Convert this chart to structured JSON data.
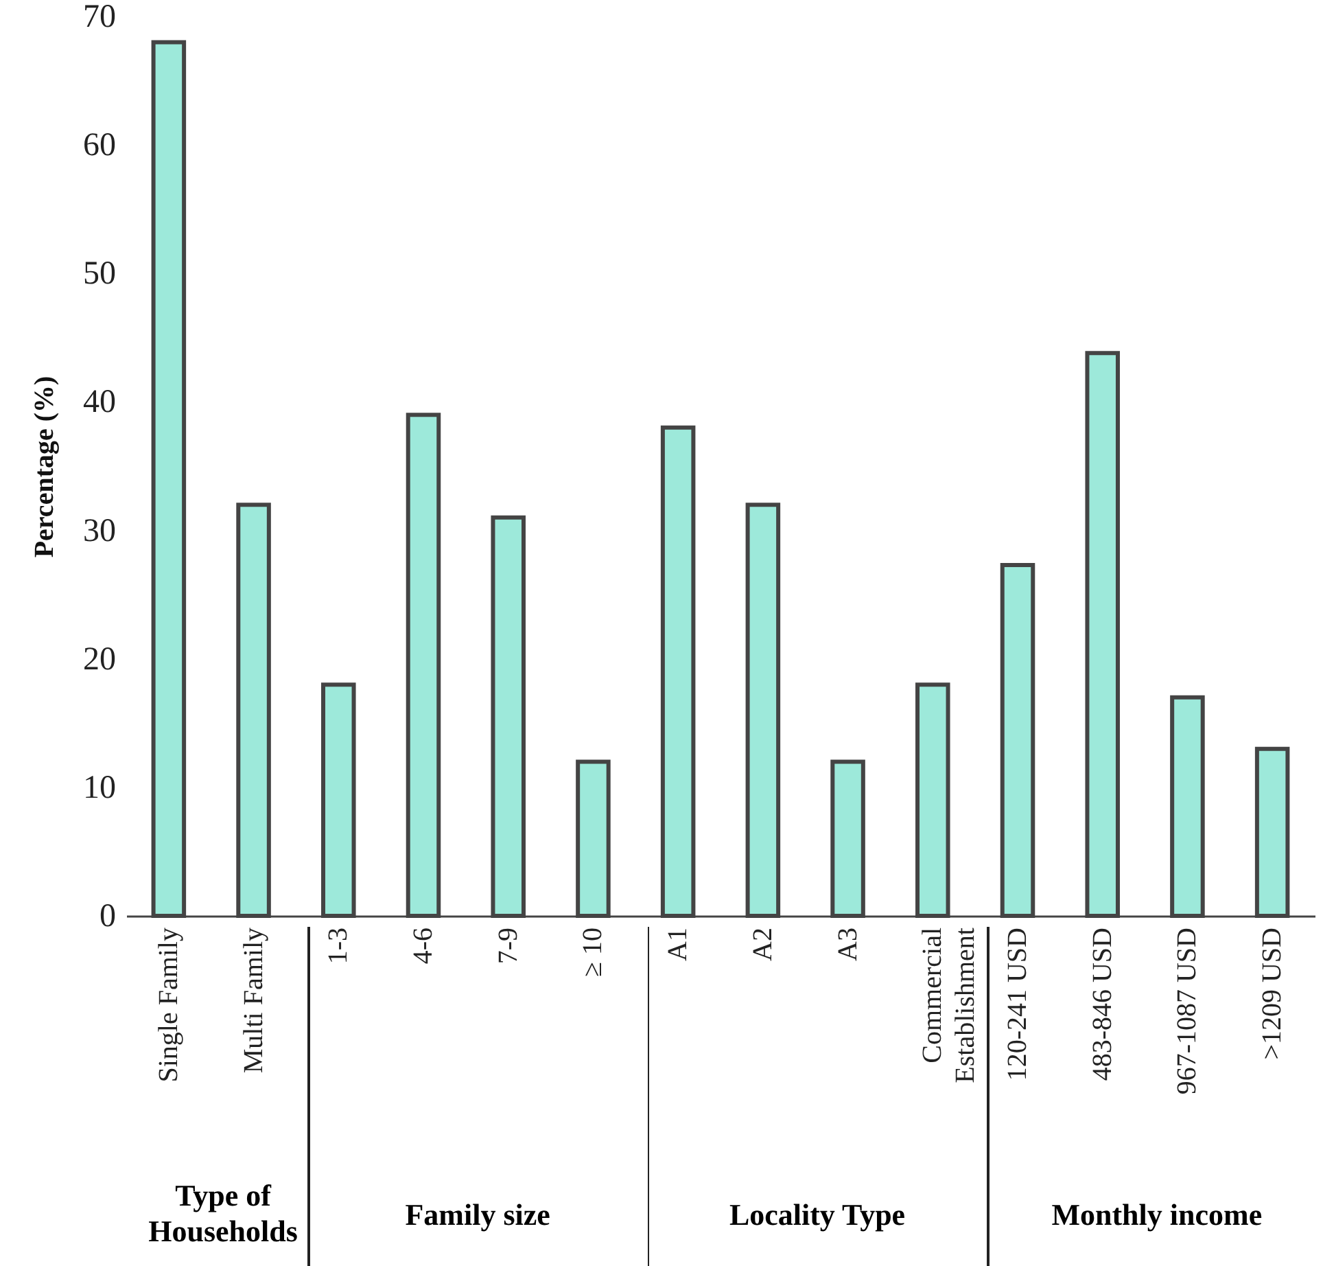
{
  "chart_data": {
    "type": "bar",
    "ylabel": "Percentage (%)",
    "categories": [
      "Single Family",
      "Multi Family",
      "1-3",
      "4-6",
      "7-9",
      "≥ 10",
      "A1",
      "A2",
      "A3",
      "Commercial Establishment",
      "120-241 USD",
      "483-846 USD",
      "967-1087 USD",
      ">1209 USD"
    ],
    "values": [
      68,
      32,
      18,
      39,
      31,
      12,
      38,
      32,
      12,
      18,
      27.3,
      43.8,
      17,
      13
    ],
    "color": "#9de9da",
    "ylim": [
      0,
      70
    ],
    "yticks": [
      0,
      10,
      20,
      30,
      40,
      50,
      60,
      70
    ],
    "annotations": [
      "Type of Households",
      "Family size",
      "Locality Type",
      "Monthly income"
    ]
  }
}
